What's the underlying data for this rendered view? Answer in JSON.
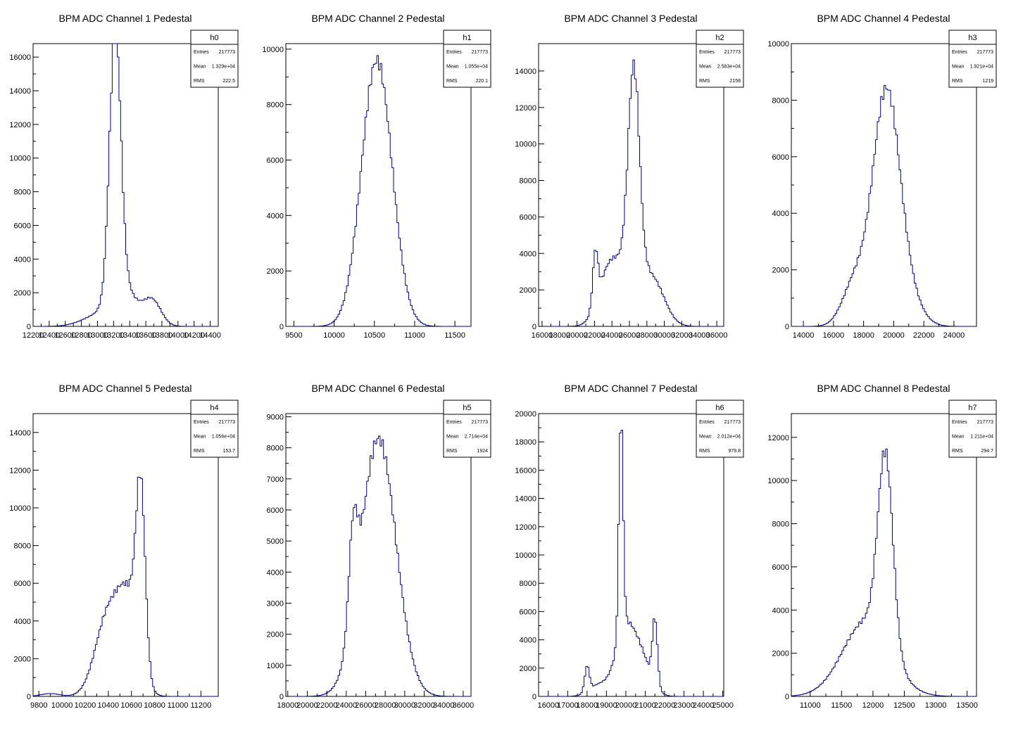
{
  "chart_data": [
    {
      "type": "histogram",
      "title": "BPM ADC Channel 1 Pedestal",
      "xlim": [
        12200,
        14500
      ],
      "ylim": [
        0,
        16800
      ],
      "xticks": [
        12200,
        12400,
        12600,
        12800,
        13000,
        13200,
        13400,
        13600,
        13800,
        14000,
        14200,
        14400
      ],
      "yticks": [
        0,
        2000,
        4000,
        6000,
        8000,
        10000,
        12000,
        14000,
        16000
      ],
      "stats": {
        "name": "h0",
        "rows": [
          {
            "label": "Entries",
            "value": "217773"
          },
          {
            "label": "Mean",
            "value": "1.329e+04"
          },
          {
            "label": "RMS",
            "value": "222.5"
          }
        ]
      },
      "peaks": [
        {
          "x": 13220,
          "amp": 15600,
          "w": 70
        },
        {
          "x": 13320,
          "amp": 2200,
          "w": 160
        },
        {
          "x": 13680,
          "amp": 1500,
          "w": 110
        },
        {
          "x": 13000,
          "amp": 600,
          "w": 200
        }
      ]
    },
    {
      "type": "histogram",
      "title": "BPM ADC Channel 2 Pedestal",
      "xlim": [
        9400,
        11700
      ],
      "ylim": [
        0,
        10200
      ],
      "xticks": [
        9500,
        10000,
        10500,
        11000,
        11500
      ],
      "yticks": [
        0,
        2000,
        4000,
        6000,
        8000,
        10000
      ],
      "stats": {
        "name": "h1",
        "rows": [
          {
            "label": "Entries",
            "value": "217773"
          },
          {
            "label": "Mean",
            "value": "1.055e+04"
          },
          {
            "label": "RMS",
            "value": "220.1"
          }
        ]
      },
      "peaks": [
        {
          "x": 10530,
          "amp": 9600,
          "w": 190
        }
      ]
    },
    {
      "type": "histogram",
      "title": "BPM ADC Channel 3 Pedestal",
      "xlim": [
        15600,
        36800
      ],
      "ylim": [
        0,
        15500
      ],
      "xticks": [
        16000,
        18000,
        20000,
        22000,
        24000,
        26000,
        28000,
        30000,
        32000,
        34000,
        36000
      ],
      "yticks": [
        0,
        2000,
        4000,
        6000,
        8000,
        10000,
        12000,
        14000
      ],
      "stats": {
        "name": "h2",
        "rows": [
          {
            "label": "Entries",
            "value": "217773"
          },
          {
            "label": "Mean",
            "value": "2.583e+04"
          },
          {
            "label": "RMS",
            "value": "2158"
          }
        ]
      },
      "peaks": [
        {
          "x": 26500,
          "amp": 11500,
          "w": 650
        },
        {
          "x": 25300,
          "amp": 2600,
          "w": 1600
        },
        {
          "x": 22100,
          "amp": 2900,
          "w": 300
        },
        {
          "x": 23500,
          "amp": 2000,
          "w": 1200
        },
        {
          "x": 28600,
          "amp": 2500,
          "w": 1400
        }
      ]
    },
    {
      "type": "histogram",
      "title": "BPM ADC Channel 4 Pedestal",
      "xlim": [
        13200,
        25500
      ],
      "ylim": [
        0,
        10000
      ],
      "xticks": [
        14000,
        16000,
        18000,
        20000,
        22000,
        24000
      ],
      "yticks": [
        0,
        2000,
        4000,
        6000,
        8000,
        10000
      ],
      "stats": {
        "name": "h3",
        "rows": [
          {
            "label": "Entries",
            "value": "217773"
          },
          {
            "label": "Mean",
            "value": "1.921e+04"
          },
          {
            "label": "RMS",
            "value": "1219"
          }
        ]
      },
      "peaks": [
        {
          "x": 19500,
          "amp": 8200,
          "w": 900
        },
        {
          "x": 17400,
          "amp": 1500,
          "w": 800
        },
        {
          "x": 21000,
          "amp": 800,
          "w": 900
        }
      ]
    },
    {
      "type": "histogram",
      "title": "BPM ADC Channel 5 Pedestal",
      "xlim": [
        9750,
        11350
      ],
      "ylim": [
        0,
        15000
      ],
      "xticks": [
        9800,
        10000,
        10200,
        10400,
        10600,
        10800,
        11000,
        11200
      ],
      "yticks": [
        0,
        2000,
        4000,
        6000,
        8000,
        10000,
        12000,
        14000
      ],
      "stats": {
        "name": "h4",
        "rows": [
          {
            "label": "Entries",
            "value": "217773"
          },
          {
            "label": "Mean",
            "value": "1.056e+04"
          },
          {
            "label": "RMS",
            "value": "153.7"
          }
        ]
      },
      "peaks": [
        {
          "x": 10680,
          "amp": 9200,
          "w": 40
        },
        {
          "x": 10580,
          "amp": 4500,
          "w": 90
        },
        {
          "x": 10400,
          "amp": 4300,
          "w": 110
        },
        {
          "x": 9900,
          "amp": 150,
          "w": 80
        }
      ]
    },
    {
      "type": "histogram",
      "title": "BPM ADC Channel 6 Pedestal",
      "xlim": [
        17800,
        36800
      ],
      "ylim": [
        0,
        9100
      ],
      "xticks": [
        18000,
        20000,
        22000,
        24000,
        26000,
        28000,
        30000,
        32000,
        34000,
        36000
      ],
      "yticks": [
        0,
        1000,
        2000,
        3000,
        4000,
        5000,
        6000,
        7000,
        8000,
        9000
      ],
      "stats": {
        "name": "h5",
        "rows": [
          {
            "label": "Entries",
            "value": "217773"
          },
          {
            "label": "Mean",
            "value": "2.714e+04"
          },
          {
            "label": "RMS",
            "value": "1924"
          }
        ]
      },
      "peaks": [
        {
          "x": 27300,
          "amp": 8300,
          "w": 1800
        },
        {
          "x": 24700,
          "amp": 3000,
          "w": 450
        }
      ]
    },
    {
      "type": "histogram",
      "title": "BPM ADC Channel 7 Pedestal",
      "xlim": [
        15500,
        25050
      ],
      "ylim": [
        0,
        20000
      ],
      "xticks": [
        16000,
        17000,
        18000,
        19000,
        20000,
        21000,
        22000,
        23000,
        24000,
        25000
      ],
      "yticks": [
        0,
        2000,
        4000,
        6000,
        8000,
        10000,
        12000,
        14000,
        16000,
        18000,
        20000
      ],
      "stats": {
        "name": "h6",
        "rows": [
          {
            "label": "Entries",
            "value": "217773"
          },
          {
            "label": "Mean",
            "value": "2.012e+04"
          },
          {
            "label": "RMS",
            "value": "979.8"
          }
        ]
      },
      "peaks": [
        {
          "x": 19750,
          "amp": 15500,
          "w": 110
        },
        {
          "x": 19950,
          "amp": 4500,
          "w": 500
        },
        {
          "x": 21500,
          "amp": 4600,
          "w": 130
        },
        {
          "x": 20800,
          "amp": 2500,
          "w": 500
        },
        {
          "x": 18000,
          "amp": 1800,
          "w": 120
        },
        {
          "x": 18600,
          "amp": 800,
          "w": 500
        }
      ]
    },
    {
      "type": "histogram",
      "title": "BPM ADC Channel 8 Pedestal",
      "xlim": [
        10700,
        13650
      ],
      "ylim": [
        0,
        13100
      ],
      "xticks": [
        11000,
        11500,
        12000,
        12500,
        13000,
        13500
      ],
      "yticks": [
        0,
        2000,
        4000,
        6000,
        8000,
        10000,
        12000
      ],
      "stats": {
        "name": "h7",
        "rows": [
          {
            "label": "Entries",
            "value": "217773"
          },
          {
            "label": "Mean",
            "value": "1.211e+04"
          },
          {
            "label": "RMS",
            "value": "294.7"
          }
        ]
      },
      "peaks": [
        {
          "x": 12200,
          "amp": 8800,
          "w": 120
        },
        {
          "x": 11900,
          "amp": 3500,
          "w": 380
        }
      ]
    }
  ]
}
